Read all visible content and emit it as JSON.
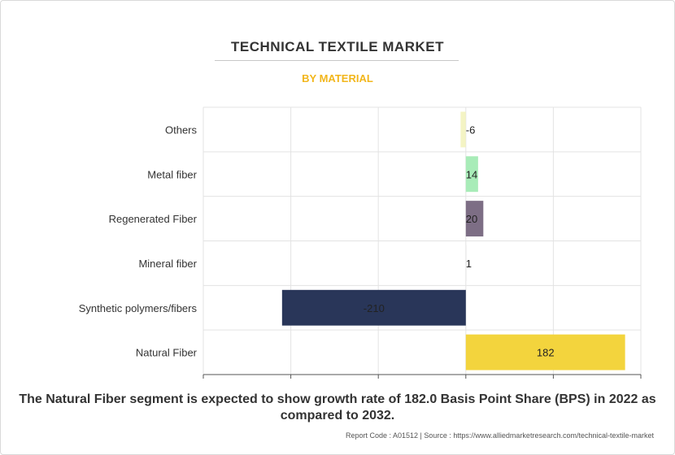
{
  "header": {
    "title": "TECHNICAL TEXTILE MARKET",
    "subtitle": "BY MATERIAL"
  },
  "chart_data": {
    "type": "bar",
    "orientation": "horizontal",
    "categories": [
      "Others",
      "Metal fiber",
      "Regenerated Fiber",
      "Mineral fiber",
      "Synthetic polymers/fibers",
      "Natural Fiber"
    ],
    "values": [
      -6,
      14,
      20,
      1,
      -210,
      182
    ],
    "data_labels": [
      "-6",
      "14",
      "20",
      "1",
      "-210",
      "182"
    ],
    "colors": [
      "#f4f4c4",
      "#a8ecb8",
      "#7d6e85",
      "#f0f0f0",
      "#293659",
      "#f3d43d"
    ],
    "xlim": [
      -300,
      200
    ],
    "grid": true,
    "legend": "none"
  },
  "caption": "The Natural Fiber segment is expected to show growth rate of 182.0 Basis Point Share (BPS) in 2022 as compared to 2032.",
  "footer": "Report Code : A01512  |  Source : https://www.alliedmarketresearch.com/technical-textile-market"
}
